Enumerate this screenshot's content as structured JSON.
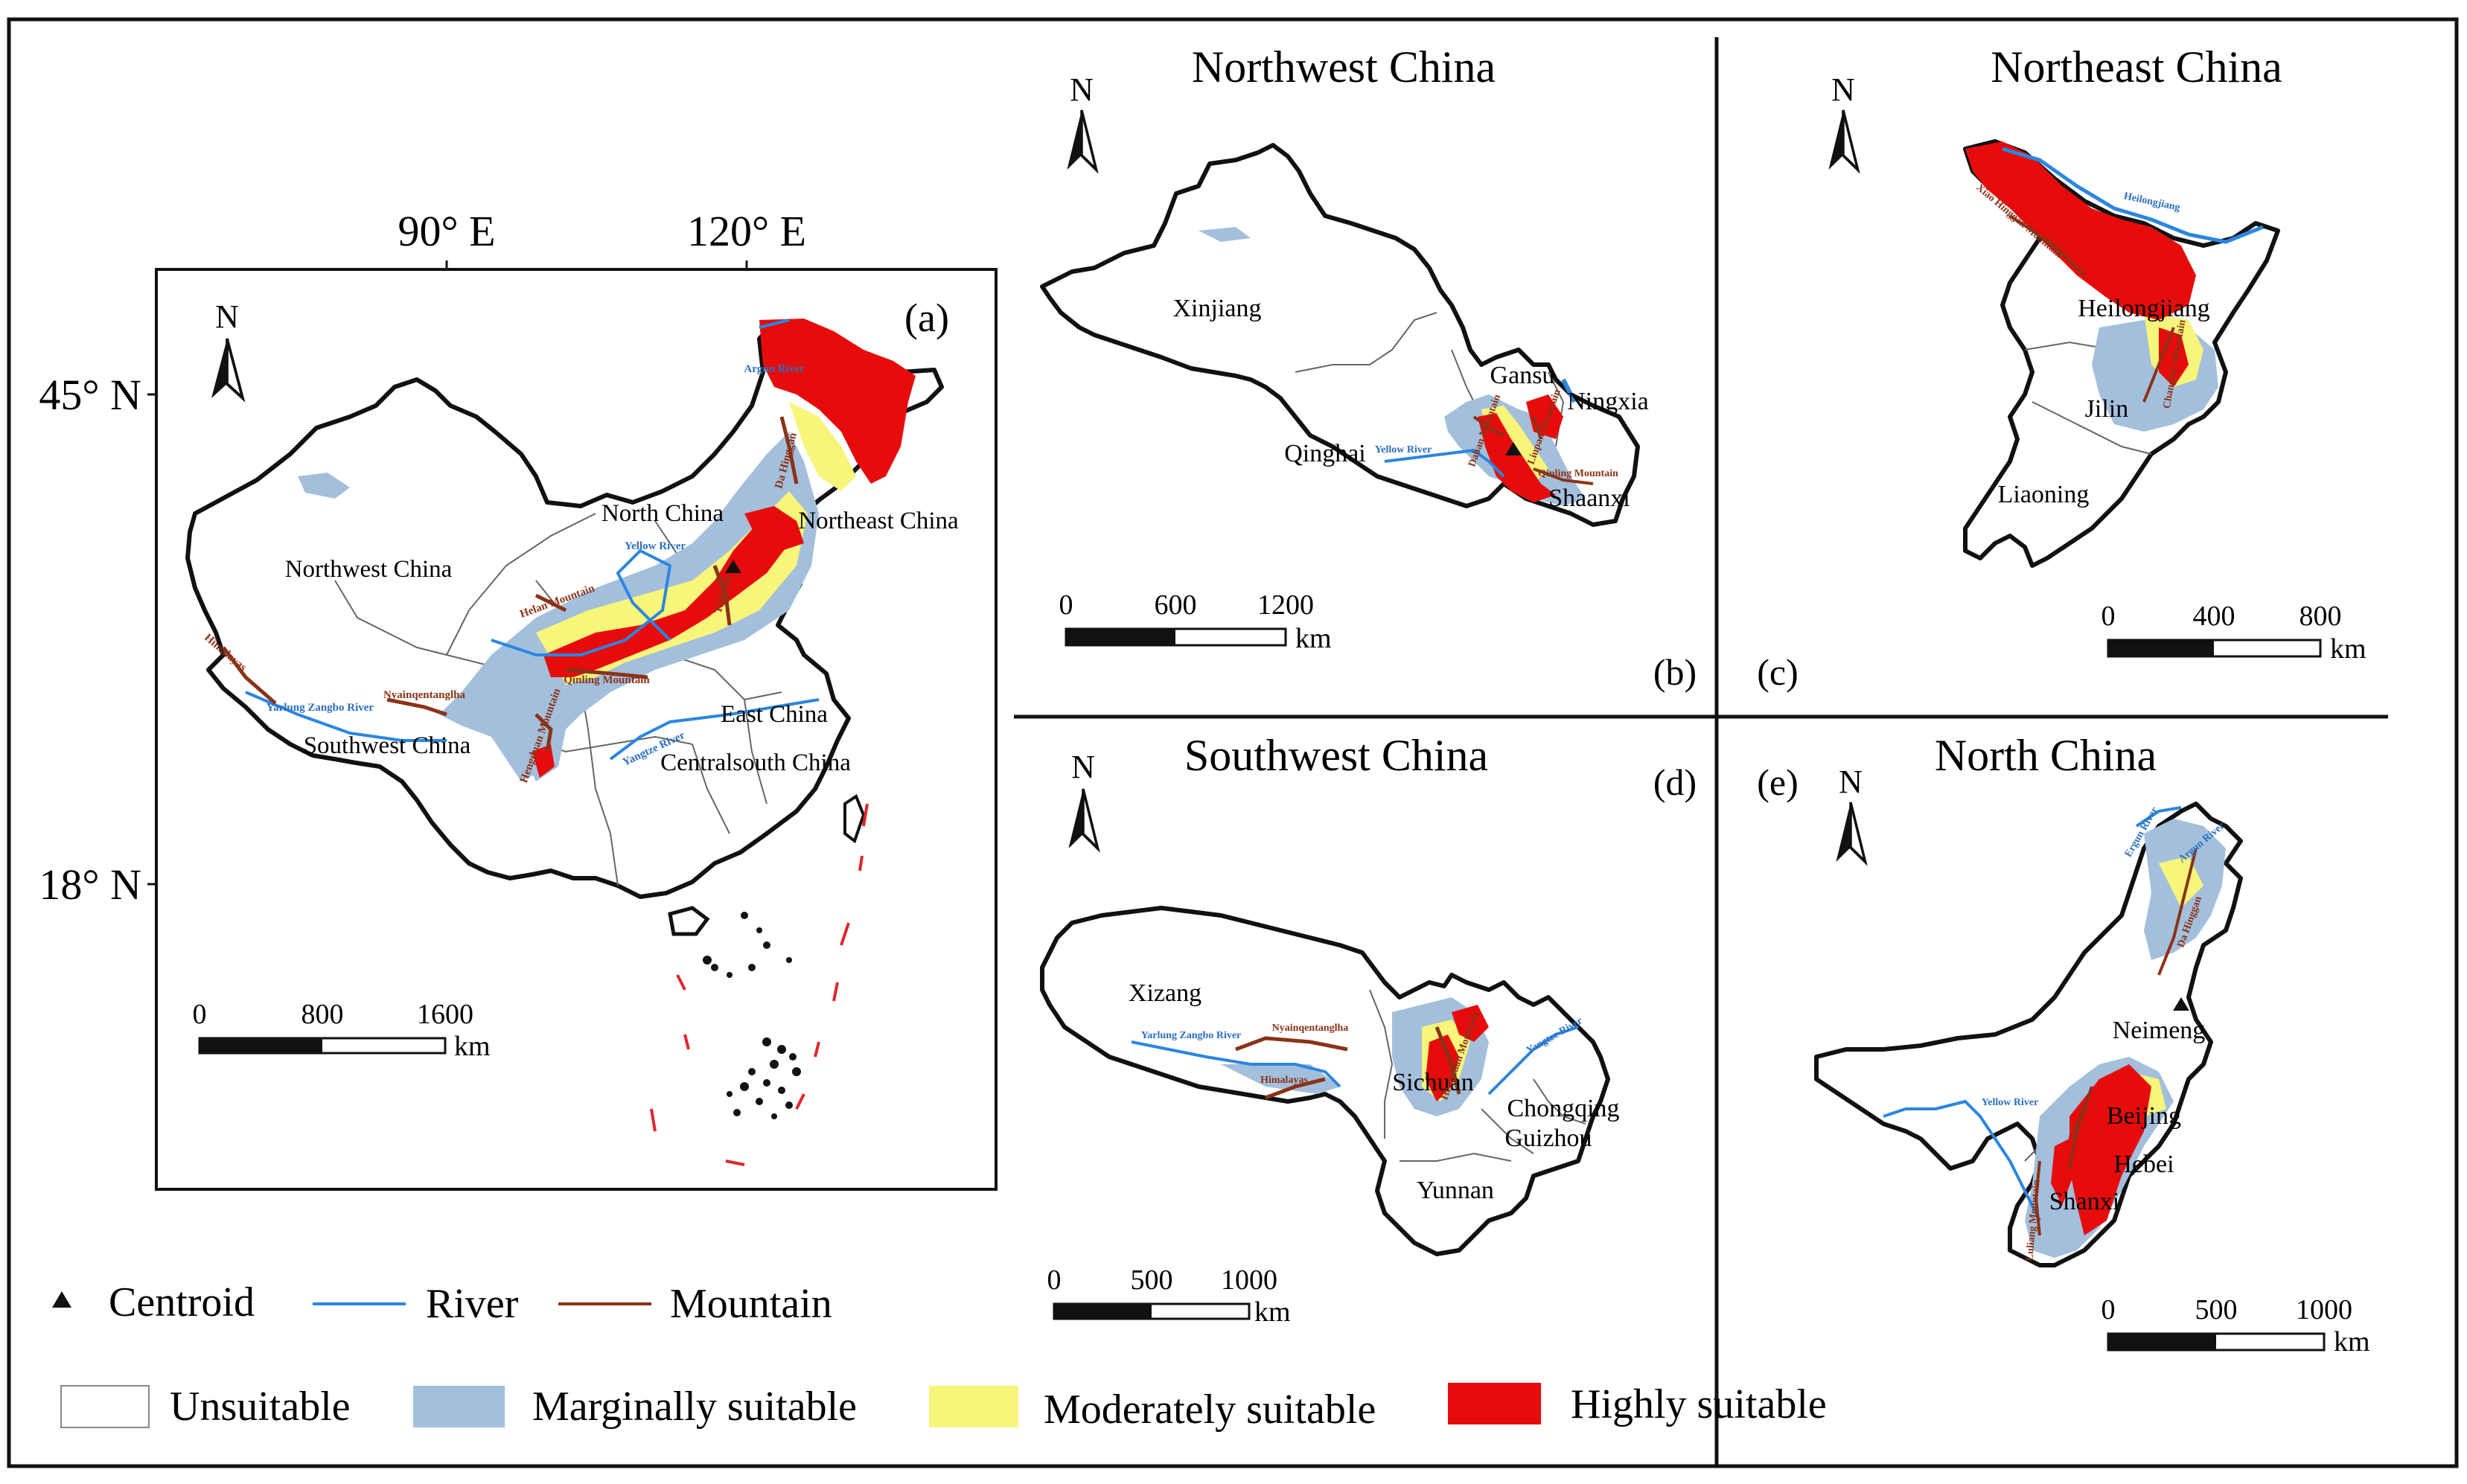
{
  "colors": {
    "unsuitable": "#ffffff",
    "marginal": "#a3bfdc",
    "moderate": "#f7f57a",
    "high": "#e60c0c",
    "river": "#2b86e0",
    "mountain": "#8a3318",
    "outline": "#1a1a1a"
  },
  "main_map": {
    "panel_letter": "(a)",
    "lon_labels": [
      "90° E",
      "120° E"
    ],
    "lat_labels": [
      "45° N",
      "18° N"
    ],
    "north": "N",
    "region_labels": [
      "North China",
      "Northeast China",
      "Northwest China",
      "East China",
      "Southwest China",
      "Centralsouth China"
    ],
    "river_labels": [
      "Argun River",
      "Yellow River",
      "Yarlung Zangbo River",
      "Yangtze River"
    ],
    "mountain_labels": [
      "Da Hinggan",
      "Himalayas",
      "Nyainqentanglha",
      "Helan Mountain",
      "Qinling Mountain",
      "Hengduan Mountain",
      "Taihang"
    ],
    "scale": {
      "ticks": [
        "0",
        "800",
        "1600"
      ],
      "unit": "km"
    }
  },
  "panel_b": {
    "title": "Northwest China",
    "panel_letter": "(b)",
    "north": "N",
    "province_labels": [
      "Xinjiang",
      "Gansu",
      "Ningxia",
      "Qinghai",
      "Shaanxi"
    ],
    "river_labels": [
      "Yellow River"
    ],
    "mountain_labels": [
      "Daban Mountain",
      "Qinling Mountain",
      "Liupan Mountain"
    ],
    "scale": {
      "ticks": [
        "0",
        "600",
        "1200"
      ],
      "unit": "km"
    }
  },
  "panel_c": {
    "title": "Northeast China",
    "panel_letter": "(c)",
    "north": "N",
    "province_labels": [
      "Heilongjiang",
      "Jilin",
      "Liaoning"
    ],
    "river_labels": [
      "Heilongjiang"
    ],
    "mountain_labels": [
      "Xiao Hinggan Mountain",
      "Changbai Mountain"
    ],
    "scale": {
      "ticks": [
        "0",
        "400",
        "800"
      ],
      "unit": "km"
    }
  },
  "panel_d": {
    "title": "Southwest China",
    "panel_letter": "(d)",
    "north": "N",
    "province_labels": [
      "Xizang",
      "Sichuan",
      "Chongqing",
      "Guizhou",
      "Yunnan"
    ],
    "river_labels": [
      "Yarlung Zangbo River",
      "Yangtze River"
    ],
    "mountain_labels": [
      "Nyainqentanglha",
      "Himalayas",
      "Hengduan Mountain"
    ],
    "scale": {
      "ticks": [
        "0",
        "500",
        "1000"
      ],
      "unit": "km"
    }
  },
  "panel_e": {
    "title": "North China",
    "panel_letter": "(e)",
    "north": "N",
    "province_labels": [
      "Neimeng",
      "Beijing",
      "Hebei",
      "Shanxi"
    ],
    "river_labels": [
      "Ergun River",
      "Argun River",
      "Yellow River"
    ],
    "mountain_labels": [
      "Da Hinggan",
      "Taihang",
      "Luliang Mountain"
    ],
    "scale": {
      "ticks": [
        "0",
        "500",
        "1000"
      ],
      "unit": "km"
    }
  },
  "legend": {
    "centroid": "Centroid",
    "river": "River",
    "mountain": "Mountain",
    "unsuitable": "Unsuitable",
    "marginal": "Marginally suitable",
    "moderate": "Moderately suitable",
    "high": "Highly suitable"
  }
}
